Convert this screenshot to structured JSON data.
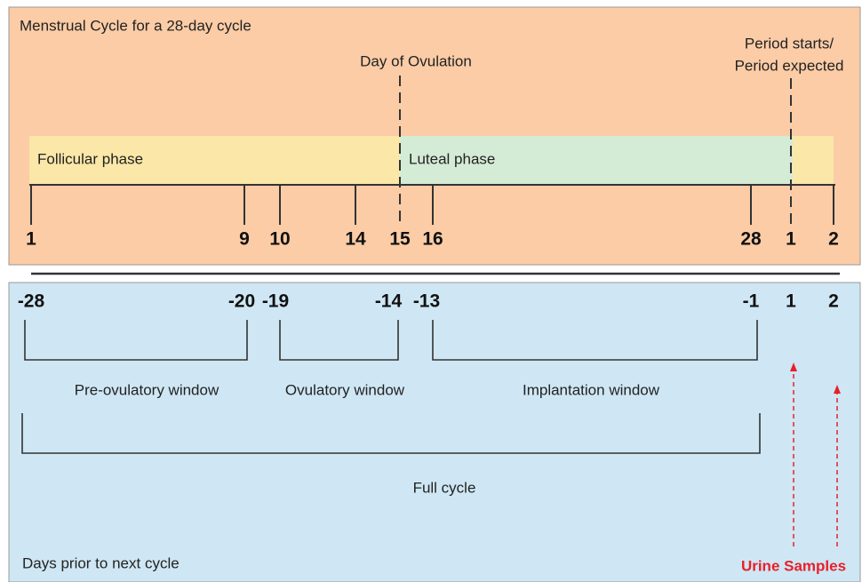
{
  "title": "Menstrual Cycle for a 28-day cycle",
  "annotations": {
    "ovulation": "Day of Ovulation",
    "period": [
      "Period starts/",
      "Period expected"
    ]
  },
  "phases": [
    "Follicular phase",
    "Luteal phase"
  ],
  "cycle_days": [
    1,
    9,
    10,
    14,
    15,
    16,
    28,
    1,
    2
  ],
  "prior_days": [
    -28,
    -20,
    -19,
    -14,
    -13,
    -1,
    1,
    2
  ],
  "windows": [
    "Pre-ovulatory window",
    "Ovulatory window",
    "Implantation window",
    "Full cycle"
  ],
  "footer": "Days prior to next cycle",
  "samples_label": "Urine Samples"
}
